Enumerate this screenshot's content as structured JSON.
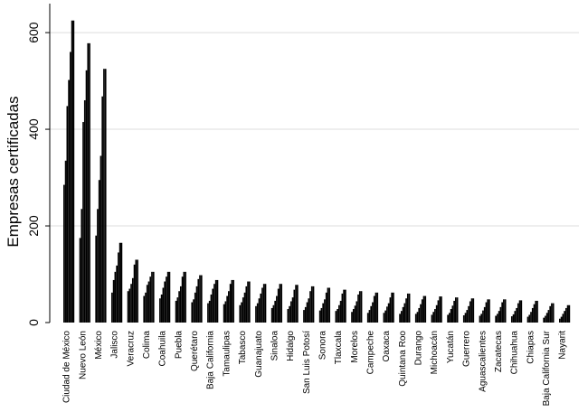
{
  "chart_data": {
    "type": "bar",
    "ylabel": "Empresas certificadas",
    "xlabel": "",
    "ylim": [
      0,
      660
    ],
    "yticks": [
      0,
      200,
      400,
      600
    ],
    "grid": true,
    "bar_color": "#000000",
    "grid_color": "#dcdcdc",
    "bars_per_category": 8,
    "categories": [
      "Ciudad de México",
      "Nuevo León",
      "México",
      "Jalisco",
      "Veracruz",
      "Colima",
      "Coahuila",
      "Puebla",
      "Querétaro",
      "Baja California",
      "Tamaulipas",
      "Tabasco",
      "Guanajuato",
      "Sinaloa",
      "Hidalgo",
      "San Luis Potosí",
      "Sonora",
      "Tlaxcala",
      "Morelos",
      "Campeche",
      "Oaxaca",
      "Quintana Roo",
      "Durango",
      "Michoacán",
      "Yucatán",
      "Guerrero",
      "Aguascalientes",
      "Zacatecas",
      "Chihuahua",
      "Chiapas",
      "Baja California Sur",
      "Nayarit"
    ],
    "series_values": [
      [
        285,
        335,
        448,
        502,
        560,
        625,
        625,
        0
      ],
      [
        175,
        235,
        415,
        460,
        522,
        578,
        578,
        0
      ],
      [
        180,
        235,
        295,
        345,
        468,
        525,
        525,
        0
      ],
      [
        62,
        88,
        105,
        118,
        145,
        165,
        165,
        0
      ],
      [
        65,
        70,
        80,
        92,
        120,
        130,
        130,
        0
      ],
      [
        55,
        62,
        78,
        85,
        95,
        105,
        105,
        0
      ],
      [
        50,
        58,
        72,
        85,
        95,
        105,
        105,
        0
      ],
      [
        45,
        52,
        65,
        75,
        95,
        105,
        105,
        0
      ],
      [
        42,
        48,
        62,
        75,
        90,
        98,
        98,
        0
      ],
      [
        40,
        45,
        58,
        70,
        80,
        88,
        88,
        0
      ],
      [
        38,
        44,
        55,
        65,
        80,
        88,
        88,
        0
      ],
      [
        36,
        42,
        52,
        62,
        75,
        85,
        85,
        0
      ],
      [
        34,
        40,
        50,
        60,
        72,
        80,
        80,
        0
      ],
      [
        30,
        36,
        45,
        55,
        70,
        80,
        80,
        0
      ],
      [
        28,
        34,
        44,
        52,
        68,
        78,
        78,
        0
      ],
      [
        26,
        32,
        42,
        50,
        65,
        75,
        75,
        0
      ],
      [
        25,
        30,
        40,
        48,
        62,
        72,
        72,
        0
      ],
      [
        24,
        28,
        36,
        45,
        60,
        68,
        68,
        0
      ],
      [
        22,
        28,
        35,
        44,
        58,
        65,
        65,
        0
      ],
      [
        20,
        26,
        34,
        42,
        55,
        62,
        62,
        0
      ],
      [
        20,
        25,
        33,
        40,
        52,
        62,
        62,
        0
      ],
      [
        18,
        24,
        32,
        40,
        50,
        60,
        60,
        0
      ],
      [
        18,
        22,
        30,
        38,
        48,
        55,
        55,
        0
      ],
      [
        16,
        22,
        28,
        36,
        46,
        54,
        54,
        0
      ],
      [
        16,
        20,
        28,
        35,
        45,
        52,
        52,
        0
      ],
      [
        15,
        20,
        26,
        34,
        44,
        50,
        50,
        0
      ],
      [
        14,
        18,
        25,
        32,
        42,
        48,
        48,
        0
      ],
      [
        14,
        18,
        24,
        32,
        42,
        48,
        48,
        0
      ],
      [
        13,
        17,
        24,
        30,
        40,
        46,
        46,
        0
      ],
      [
        12,
        16,
        22,
        30,
        38,
        45,
        45,
        0
      ],
      [
        10,
        14,
        20,
        26,
        34,
        40,
        40,
        0
      ],
      [
        8,
        12,
        18,
        24,
        30,
        36,
        36,
        0
      ]
    ]
  }
}
